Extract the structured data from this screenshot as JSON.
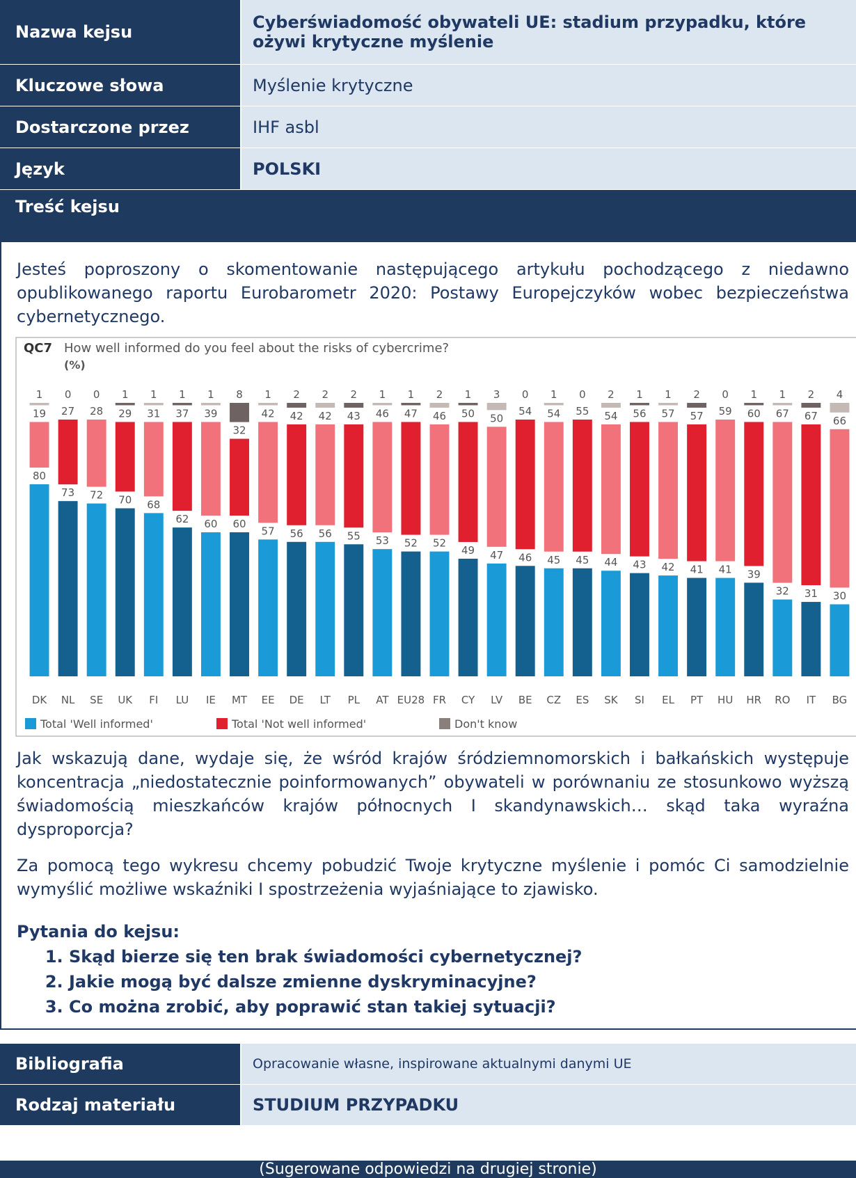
{
  "header": {
    "rows": [
      {
        "label": "Nazwa kejsu",
        "value": "Cyberświadomość obywateli UE: stadium przypadku, które ożywi krytyczne myślenie"
      },
      {
        "label": "Kluczowe słowa",
        "value": "Myślenie krytyczne"
      },
      {
        "label": "Dostarczone przez",
        "value": "IHF asbl"
      },
      {
        "label": "Język",
        "value": "POLSKI"
      }
    ],
    "section": "Treść kejsu"
  },
  "content": {
    "intro": "Jesteś poproszony o skomentowanie następującego artykułu pochodzącego z niedawno opublikowanego raportu Eurobarometr 2020: Postawy Europejczyków wobec bezpieczeństwa cybernetycznego.",
    "paragraphs": [
      "Jak wskazują dane, wydaje się, że wśród krajów śródziemnomorskich i bałkańskich występuje koncentracja „niedostatecznie poinformowanych” obywateli w porównaniu ze stosunkowo wyższą świadomością mieszkańców krajów północnych I skandynawskich… skąd taka wyraźna dysproporcja?",
      "Za pomocą tego wykresu chcemy pobudzić Twoje krytyczne myślenie i pomóc Ci samodzielnie wymyślić możliwe wskaźniki I spostrzeżenia wyjaśniające to zjawisko."
    ],
    "questions_title": "Pytania do kejsu:",
    "questions": [
      "Skąd bierze się ten brak świadomości cybernetycznej?",
      "Jakie mogą być dalsze zmienne dyskryminacyjne?",
      "Co można zrobić, aby poprawić stan takiej sytuacji?"
    ]
  },
  "footer_table": {
    "rows": [
      {
        "label": "Bibliografia",
        "value": "Opracowanie własne, inspirowane aktualnymi danymi UE"
      },
      {
        "label": "Rodzaj materiału",
        "value": "STUDIUM PRZYPADKU"
      }
    ],
    "note": "(Sugerowane odpowiedzi na drugiej stronie)"
  },
  "chart_data": {
    "type": "stacked_bar",
    "code": "QC7",
    "title": "How well informed do you feel about the risks of cybercrime?",
    "unit": "(%)",
    "categories": [
      "DK",
      "NL",
      "SE",
      "UK",
      "FI",
      "LU",
      "IE",
      "MT",
      "EE",
      "DE",
      "LT",
      "PL",
      "AT",
      "EU28",
      "FR",
      "CY",
      "LV",
      "BE",
      "CZ",
      "ES",
      "SK",
      "SI",
      "EL",
      "PT",
      "HU",
      "HR",
      "RO",
      "IT",
      "BG"
    ],
    "series": [
      {
        "name": "Total 'Well informed'",
        "color": "#1a9ad6",
        "colors": [
          "#1a9ad6",
          "#14608f",
          "#1a9ad6",
          "#14608f",
          "#1a9ad6",
          "#14608f",
          "#1a9ad6",
          "#14608f",
          "#1a9ad6",
          "#14608f",
          "#1a9ad6",
          "#14608f",
          "#1a9ad6",
          "#14608f",
          "#1a9ad6",
          "#14608f",
          "#1a9ad6",
          "#14608f",
          "#1a9ad6",
          "#14608f",
          "#1a9ad6",
          "#14608f",
          "#1a9ad6",
          "#14608f",
          "#1a9ad6",
          "#14608f",
          "#1a9ad6",
          "#14608f",
          "#1a9ad6"
        ],
        "values": [
          80,
          73,
          72,
          70,
          68,
          62,
          60,
          60,
          57,
          56,
          56,
          55,
          53,
          52,
          52,
          49,
          47,
          46,
          45,
          45,
          44,
          43,
          42,
          41,
          41,
          39,
          32,
          31,
          30
        ]
      },
      {
        "name": "Total 'Not well informed'",
        "color": "#e0202e",
        "colors": [
          "#f2727b",
          "#e0202e",
          "#f2727b",
          "#e0202e",
          "#f2727b",
          "#e0202e",
          "#f2727b",
          "#e0202e",
          "#f2727b",
          "#e0202e",
          "#f2727b",
          "#e0202e",
          "#f2727b",
          "#e0202e",
          "#f2727b",
          "#e0202e",
          "#f2727b",
          "#e0202e",
          "#f2727b",
          "#e0202e",
          "#f2727b",
          "#e0202e",
          "#f2727b",
          "#e0202e",
          "#f2727b",
          "#e0202e",
          "#f2727b",
          "#e0202e",
          "#f2727b"
        ],
        "values": [
          19,
          27,
          28,
          29,
          31,
          37,
          39,
          32,
          42,
          42,
          42,
          43,
          46,
          47,
          46,
          50,
          50,
          54,
          54,
          55,
          54,
          56,
          57,
          57,
          59,
          60,
          67,
          67,
          66
        ]
      },
      {
        "name": "Don't know",
        "color": "#8a7f7c",
        "colors": [
          "#c4b9b5",
          "#6e6262",
          "#c4b9b5",
          "#6e6262",
          "#c4b9b5",
          "#6e6262",
          "#c4b9b5",
          "#6e6262",
          "#c4b9b5",
          "#6e6262",
          "#c4b9b5",
          "#6e6262",
          "#c4b9b5",
          "#6e6262",
          "#c4b9b5",
          "#6e6262",
          "#c4b9b5",
          "#6e6262",
          "#c4b9b5",
          "#6e6262",
          "#c4b9b5",
          "#6e6262",
          "#c4b9b5",
          "#6e6262",
          "#c4b9b5",
          "#6e6262",
          "#c4b9b5",
          "#6e6262",
          "#c4b9b5"
        ],
        "values": [
          1,
          0,
          0,
          1,
          1,
          1,
          1,
          8,
          1,
          2,
          2,
          2,
          1,
          1,
          2,
          1,
          3,
          0,
          1,
          0,
          2,
          1,
          1,
          2,
          0,
          1,
          1,
          2,
          4
        ]
      }
    ]
  }
}
